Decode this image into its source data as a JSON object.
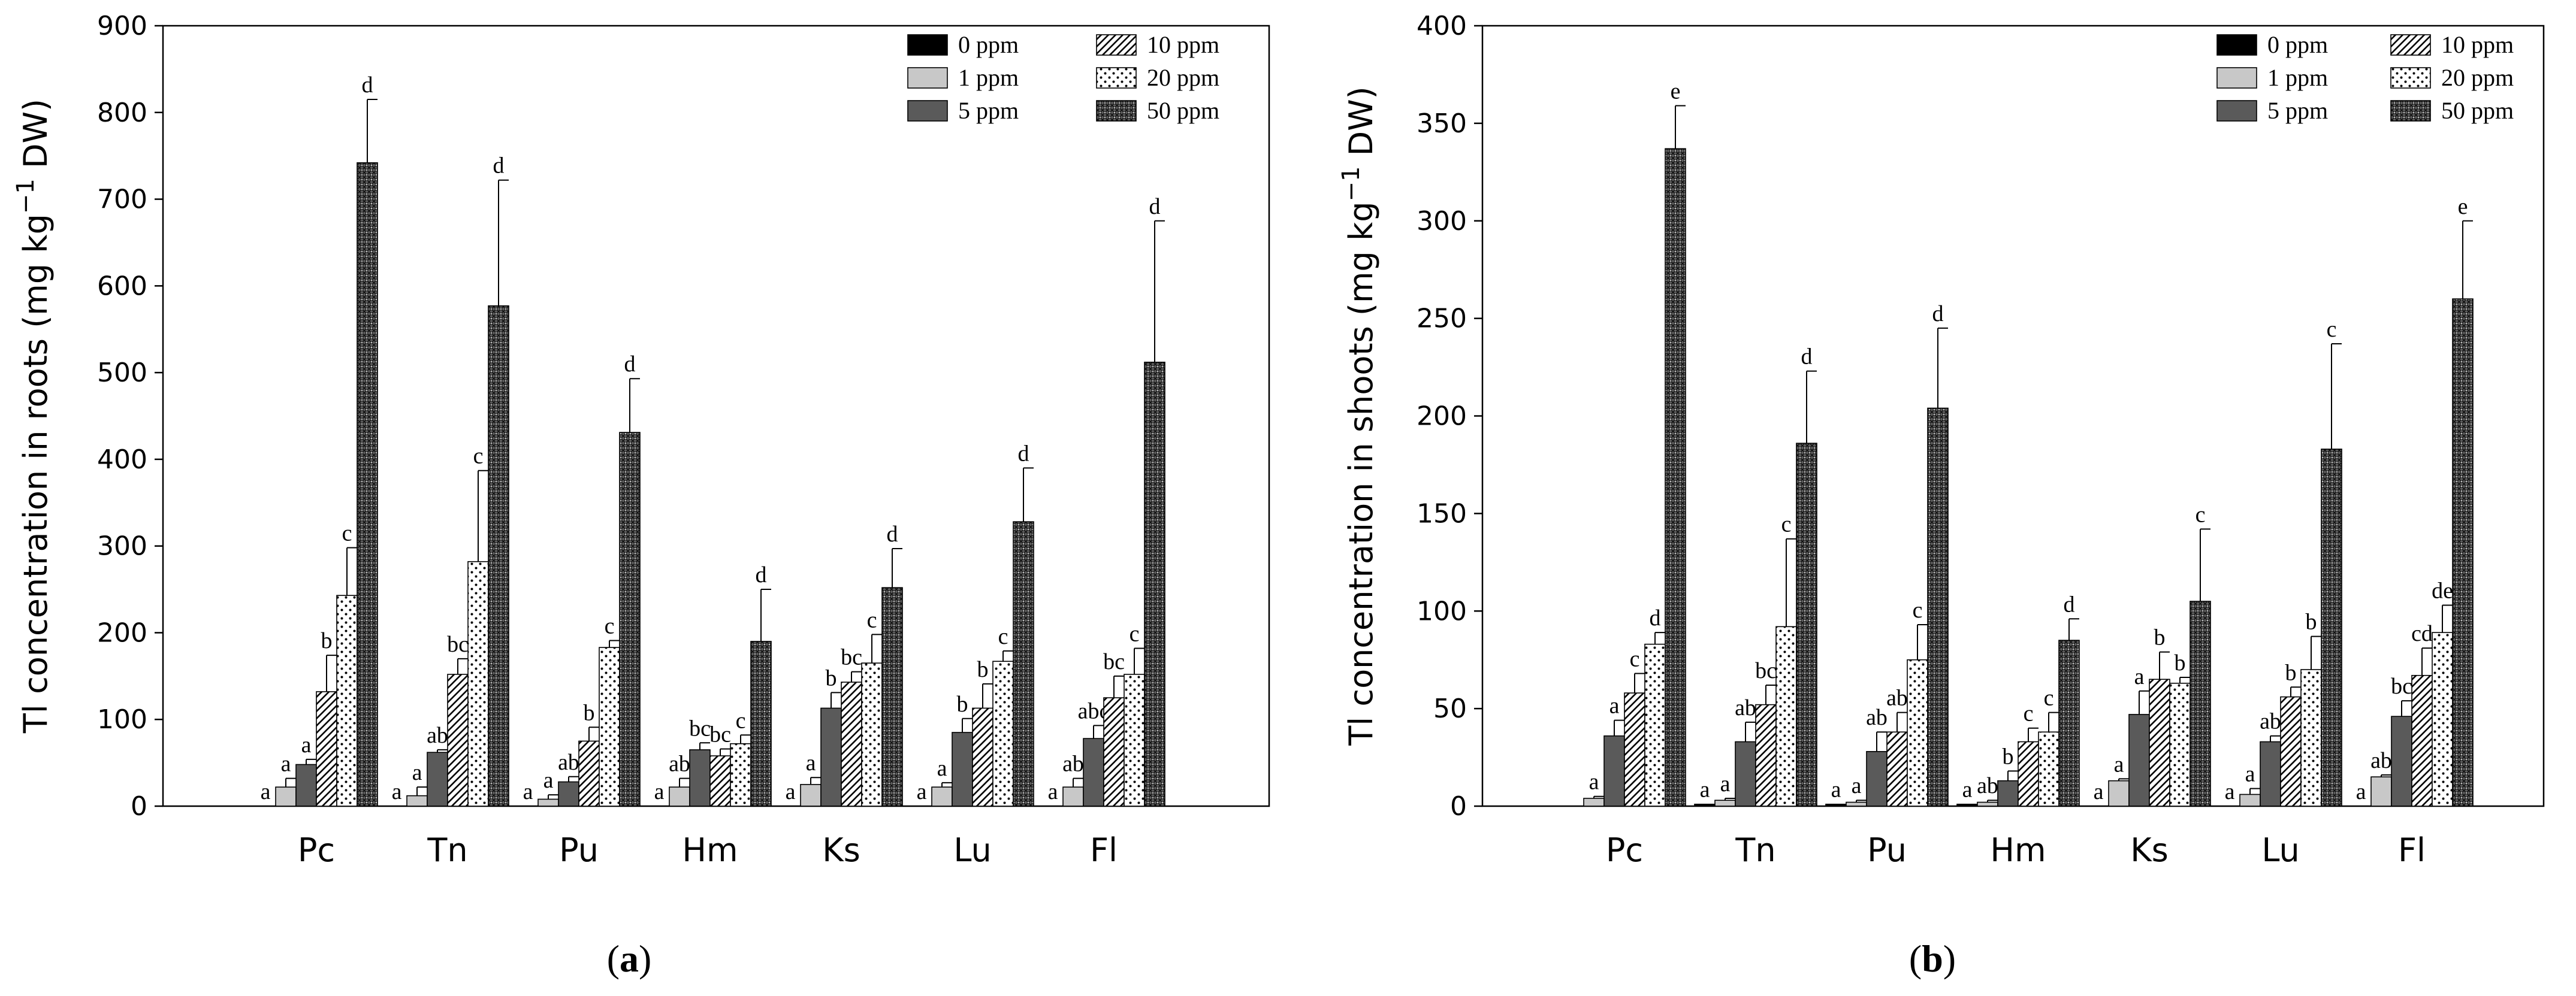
{
  "chart_data": [
    {
      "type": "bar",
      "panel_label": "(a)",
      "panel_letter": "a",
      "ylabel_prefix": "Tl concentration in roots (mg kg",
      "ylabel_sup": "−1",
      "ylabel_suffix": " DW)",
      "xlabel": "",
      "ylim": [
        0,
        900
      ],
      "yticks": [
        0,
        100,
        200,
        300,
        400,
        500,
        600,
        700,
        800,
        900
      ],
      "grid": false,
      "legend_position": "top-right",
      "categories": [
        "Pc",
        "Tn",
        "Pu",
        "Hm",
        "Ks",
        "Lu",
        "Fl"
      ],
      "series": [
        {
          "name": "0 ppm",
          "pattern": "solid-black",
          "values": [
            0,
            0,
            0,
            0,
            0,
            0,
            0
          ],
          "errors": [
            0,
            0,
            0,
            0,
            0,
            0,
            0
          ],
          "labels": [
            "a",
            "a",
            "a",
            "a",
            "a",
            "a",
            "a"
          ]
        },
        {
          "name": "1 ppm",
          "pattern": "light-gray",
          "values": [
            22,
            12,
            8,
            22,
            25,
            22,
            22
          ],
          "errors": [
            10,
            10,
            5,
            10,
            8,
            5,
            10
          ],
          "labels": [
            "a",
            "a",
            "a",
            "ab",
            "a",
            "a",
            "ab"
          ]
        },
        {
          "name": "5 ppm",
          "pattern": "dark-gray",
          "values": [
            48,
            62,
            28,
            65,
            113,
            85,
            78
          ],
          "errors": [
            6,
            3,
            6,
            8,
            18,
            16,
            15
          ],
          "labels": [
            "a",
            "ab",
            "ab",
            "bc",
            "b",
            "b",
            "abc"
          ]
        },
        {
          "name": "10 ppm",
          "pattern": "diagonal-hatch",
          "values": [
            132,
            152,
            75,
            58,
            143,
            113,
            125
          ],
          "errors": [
            42,
            18,
            16,
            8,
            12,
            28,
            25
          ],
          "labels": [
            "b",
            "bc",
            "b",
            "bc",
            "bc",
            "b",
            "bc"
          ]
        },
        {
          "name": "20 ppm",
          "pattern": "dotted",
          "values": [
            243,
            282,
            183,
            72,
            165,
            167,
            152
          ],
          "errors": [
            55,
            105,
            8,
            10,
            33,
            12,
            30
          ],
          "labels": [
            "c",
            "c",
            "c",
            "c",
            "c",
            "c",
            "c"
          ]
        },
        {
          "name": "50 ppm",
          "pattern": "crosshatch",
          "values": [
            742,
            577,
            431,
            190,
            252,
            328,
            512
          ],
          "errors": [
            73,
            145,
            62,
            60,
            45,
            62,
            163
          ],
          "labels": [
            "d",
            "d",
            "d",
            "d",
            "d",
            "d",
            "d"
          ]
        }
      ]
    },
    {
      "type": "bar",
      "panel_label": "(b)",
      "panel_letter": "b",
      "ylabel_prefix": "Tl concentration in shoots (mg kg",
      "ylabel_sup": "−1",
      "ylabel_suffix": " DW)",
      "xlabel": "",
      "ylim": [
        0,
        400
      ],
      "yticks": [
        0,
        50,
        100,
        150,
        200,
        250,
        300,
        350,
        400
      ],
      "grid": false,
      "legend_position": "top-right",
      "categories": [
        "Pc",
        "Tn",
        "Pu",
        "Hm",
        "Ks",
        "Lu",
        "Fl"
      ],
      "series": [
        {
          "name": "0 ppm",
          "pattern": "solid-black",
          "values": [
            0,
            1,
            1,
            1,
            0,
            0,
            0
          ],
          "errors": [
            0,
            0,
            0,
            0,
            0,
            0,
            0
          ],
          "labels": [
            "",
            "a",
            "a",
            "a",
            "a",
            "a",
            "a"
          ]
        },
        {
          "name": "1 ppm",
          "pattern": "light-gray",
          "values": [
            4,
            3,
            2,
            2,
            13,
            6,
            15
          ],
          "errors": [
            1,
            1,
            1,
            1,
            1,
            3,
            1
          ],
          "labels": [
            "a",
            "a",
            "a",
            "ab",
            "a",
            "a",
            "ab"
          ]
        },
        {
          "name": "5 ppm",
          "pattern": "dark-gray",
          "values": [
            36,
            33,
            28,
            13,
            47,
            33,
            46
          ],
          "errors": [
            8,
            10,
            10,
            5,
            12,
            3,
            8
          ],
          "labels": [
            "a",
            "ab",
            "ab",
            "b",
            "a",
            "ab",
            "bc"
          ]
        },
        {
          "name": "10 ppm",
          "pattern": "diagonal-hatch",
          "values": [
            58,
            52,
            38,
            33,
            65,
            56,
            67
          ],
          "errors": [
            10,
            10,
            10,
            7,
            14,
            5,
            14
          ],
          "labels": [
            "c",
            "bc",
            "ab",
            "c",
            "b",
            "b",
            "cd"
          ]
        },
        {
          "name": "20 ppm",
          "pattern": "dotted",
          "values": [
            83,
            92,
            75,
            38,
            63,
            70,
            89
          ],
          "errors": [
            6,
            45,
            18,
            10,
            3,
            17,
            14
          ],
          "labels": [
            "d",
            "c",
            "c",
            "c",
            "b",
            "b",
            "de"
          ]
        },
        {
          "name": "50 ppm",
          "pattern": "crosshatch",
          "values": [
            337,
            186,
            204,
            85,
            105,
            183,
            260
          ],
          "errors": [
            22,
            37,
            41,
            11,
            37,
            54,
            40
          ],
          "labels": [
            "e",
            "d",
            "d",
            "d",
            "c",
            "c",
            "e"
          ]
        }
      ]
    }
  ]
}
